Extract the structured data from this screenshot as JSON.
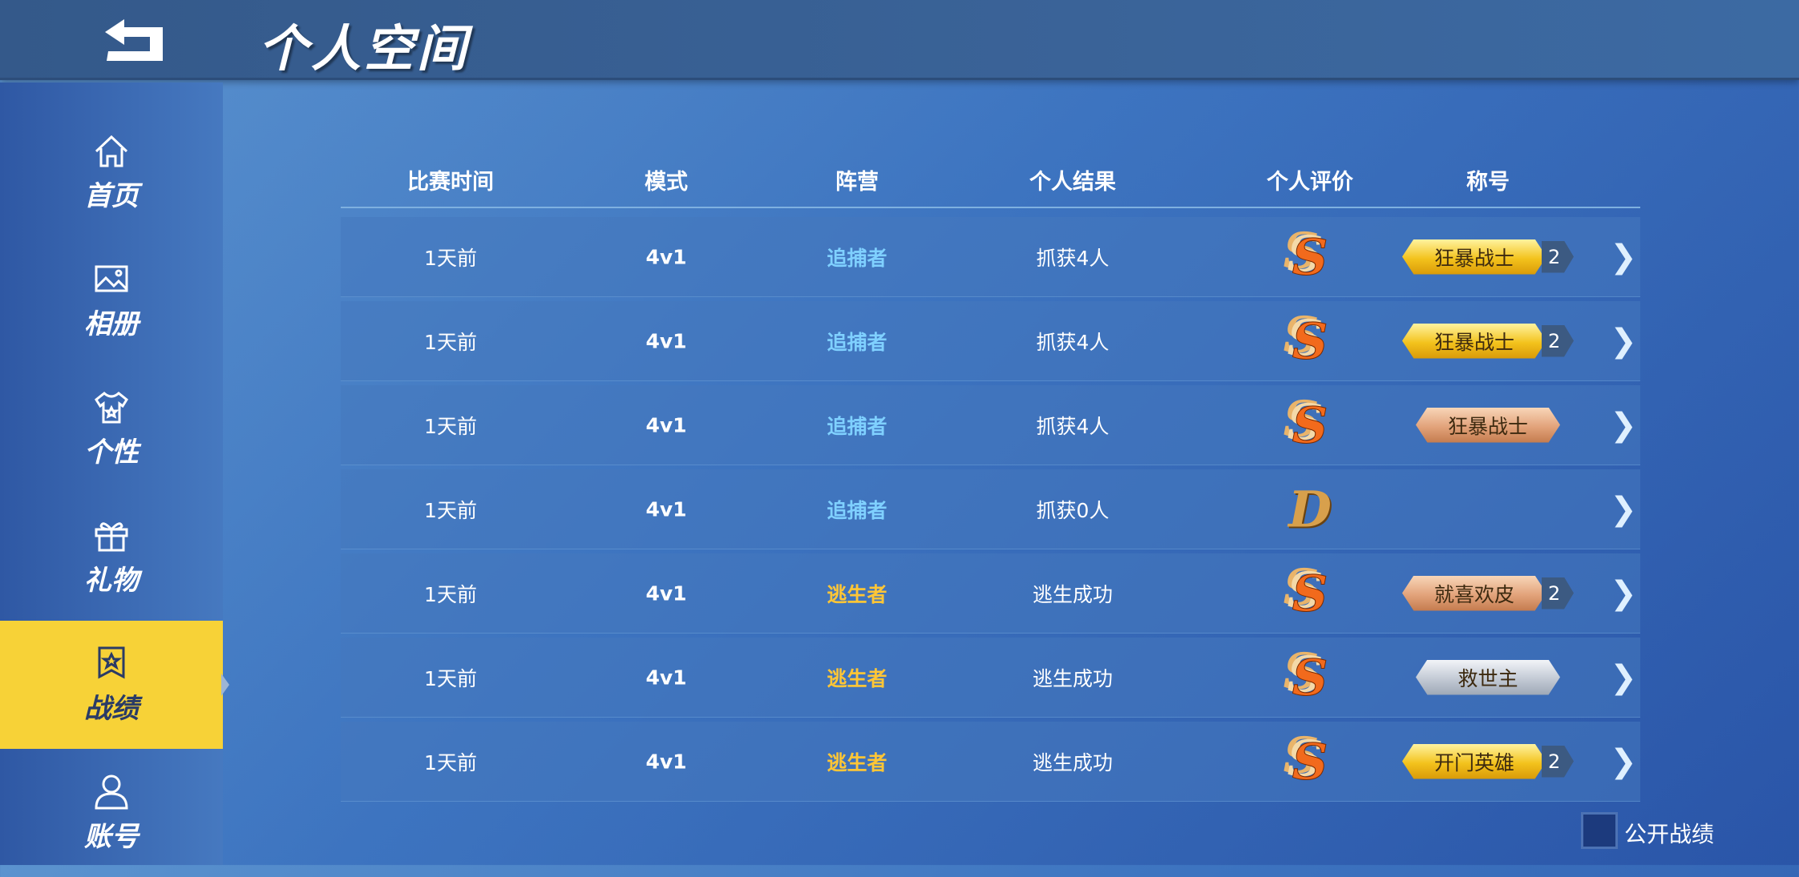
{
  "header": {
    "title": "个人空间",
    "back_icon": "back-arrow-icon"
  },
  "sidebar": {
    "items": [
      {
        "label": "首页",
        "icon": "home-icon",
        "active": false
      },
      {
        "label": "相册",
        "icon": "image-icon",
        "active": false
      },
      {
        "label": "个性",
        "icon": "shirt-icon",
        "active": false
      },
      {
        "label": "礼物",
        "icon": "gift-icon",
        "active": false
      },
      {
        "label": "战绩",
        "icon": "record-badge-icon",
        "active": true
      },
      {
        "label": "账号",
        "icon": "user-icon",
        "active": false
      }
    ]
  },
  "table": {
    "columns": [
      "比赛时间",
      "模式",
      "阵营",
      "个人结果",
      "个人评价",
      "称号"
    ],
    "rows": [
      {
        "time": "1天前",
        "mode": "4v1",
        "camp": "追捕者",
        "result": "抓获4人",
        "grade": "S",
        "title": "狂暴战士",
        "title_tier": "gold",
        "count": "2"
      },
      {
        "time": "1天前",
        "mode": "4v1",
        "camp": "追捕者",
        "result": "抓获4人",
        "grade": "S",
        "title": "狂暴战士",
        "title_tier": "gold",
        "count": "2"
      },
      {
        "time": "1天前",
        "mode": "4v1",
        "camp": "追捕者",
        "result": "抓获4人",
        "grade": "S",
        "title": "狂暴战士",
        "title_tier": "bronze",
        "count": ""
      },
      {
        "time": "1天前",
        "mode": "4v1",
        "camp": "追捕者",
        "result": "抓获0人",
        "grade": "D",
        "title": "",
        "title_tier": "",
        "count": ""
      },
      {
        "time": "1天前",
        "mode": "4v1",
        "camp": "逃生者",
        "result": "逃生成功",
        "grade": "S",
        "title": "就喜欢皮",
        "title_tier": "bronze",
        "count": "2"
      },
      {
        "time": "1天前",
        "mode": "4v1",
        "camp": "逃生者",
        "result": "逃生成功",
        "grade": "S",
        "title": "救世主",
        "title_tier": "silver",
        "count": ""
      },
      {
        "time": "1天前",
        "mode": "4v1",
        "camp": "逃生者",
        "result": "逃生成功",
        "grade": "S",
        "title": "开门英雄",
        "title_tier": "gold",
        "count": "2"
      }
    ]
  },
  "footer": {
    "public_record_label": "公开战绩",
    "public_record_checked": false
  },
  "colors": {
    "hunter": "#7fd0ff",
    "escaper": "#ffc636",
    "active_tab": "#f7d237"
  }
}
